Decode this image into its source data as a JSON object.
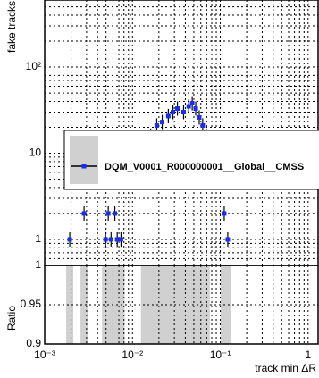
{
  "chart_data": [
    {
      "type": "scatter",
      "ylabel": "fake tracks",
      "xlim": [
        0.001,
        1.3
      ],
      "ylim": [
        0.5,
        600
      ],
      "log_x": true,
      "log_y": true,
      "grid": true,
      "yticks": [
        1,
        10,
        {
          "value": 100,
          "label": "10²"
        }
      ],
      "xminor": [
        0.002,
        0.003,
        0.004,
        0.005,
        0.006,
        0.007,
        0.008,
        0.009,
        0.02,
        0.03,
        0.04,
        0.05,
        0.06,
        0.07,
        0.08,
        0.09,
        0.2,
        0.3,
        0.4,
        0.5,
        0.6,
        0.7,
        0.8,
        0.9
      ],
      "yminor": [
        0.6,
        0.7,
        0.8,
        0.9,
        2,
        3,
        4,
        5,
        6,
        7,
        8,
        9,
        20,
        30,
        40,
        50,
        60,
        70,
        80,
        90,
        200,
        300,
        400,
        500
      ],
      "legend": "middle",
      "series": [
        {
          "name": "DQM_V0001_R000000001__Global__CMSS",
          "color": "#1a2cf0",
          "x": [
            0.00193,
            0.00281,
            0.00494,
            0.0053,
            0.0057,
            0.0063,
            0.0067,
            0.0074,
            0.0137,
            0.0161,
            0.0189,
            0.0218,
            0.0256,
            0.0289,
            0.0325,
            0.0382,
            0.0437,
            0.0479,
            0.0525,
            0.0576,
            0.0631,
            0.0692,
            0.1109,
            0.1217
          ],
          "values": [
            1,
            2,
            1,
            2,
            1,
            2,
            1,
            1,
            14,
            16,
            21,
            23,
            27,
            30,
            33,
            30,
            35,
            38,
            33,
            26,
            21,
            16,
            2,
            1
          ]
        }
      ]
    },
    {
      "type": "ratio",
      "ylabel": "Ratio",
      "xlabel": "track min ΔR",
      "xlim": [
        0.001,
        1.3
      ],
      "ylim": [
        0.9,
        1
      ],
      "log_x": true,
      "grid": true,
      "band_color": "#d0d0d0",
      "xticks": [
        {
          "value": 0.001,
          "label": "10⁻³"
        },
        {
          "value": 0.01,
          "label": "10⁻²"
        },
        {
          "value": 0.1,
          "label": "10⁻¹"
        },
        1
      ],
      "yticks": [
        0.9,
        0.95,
        1
      ]
    }
  ]
}
